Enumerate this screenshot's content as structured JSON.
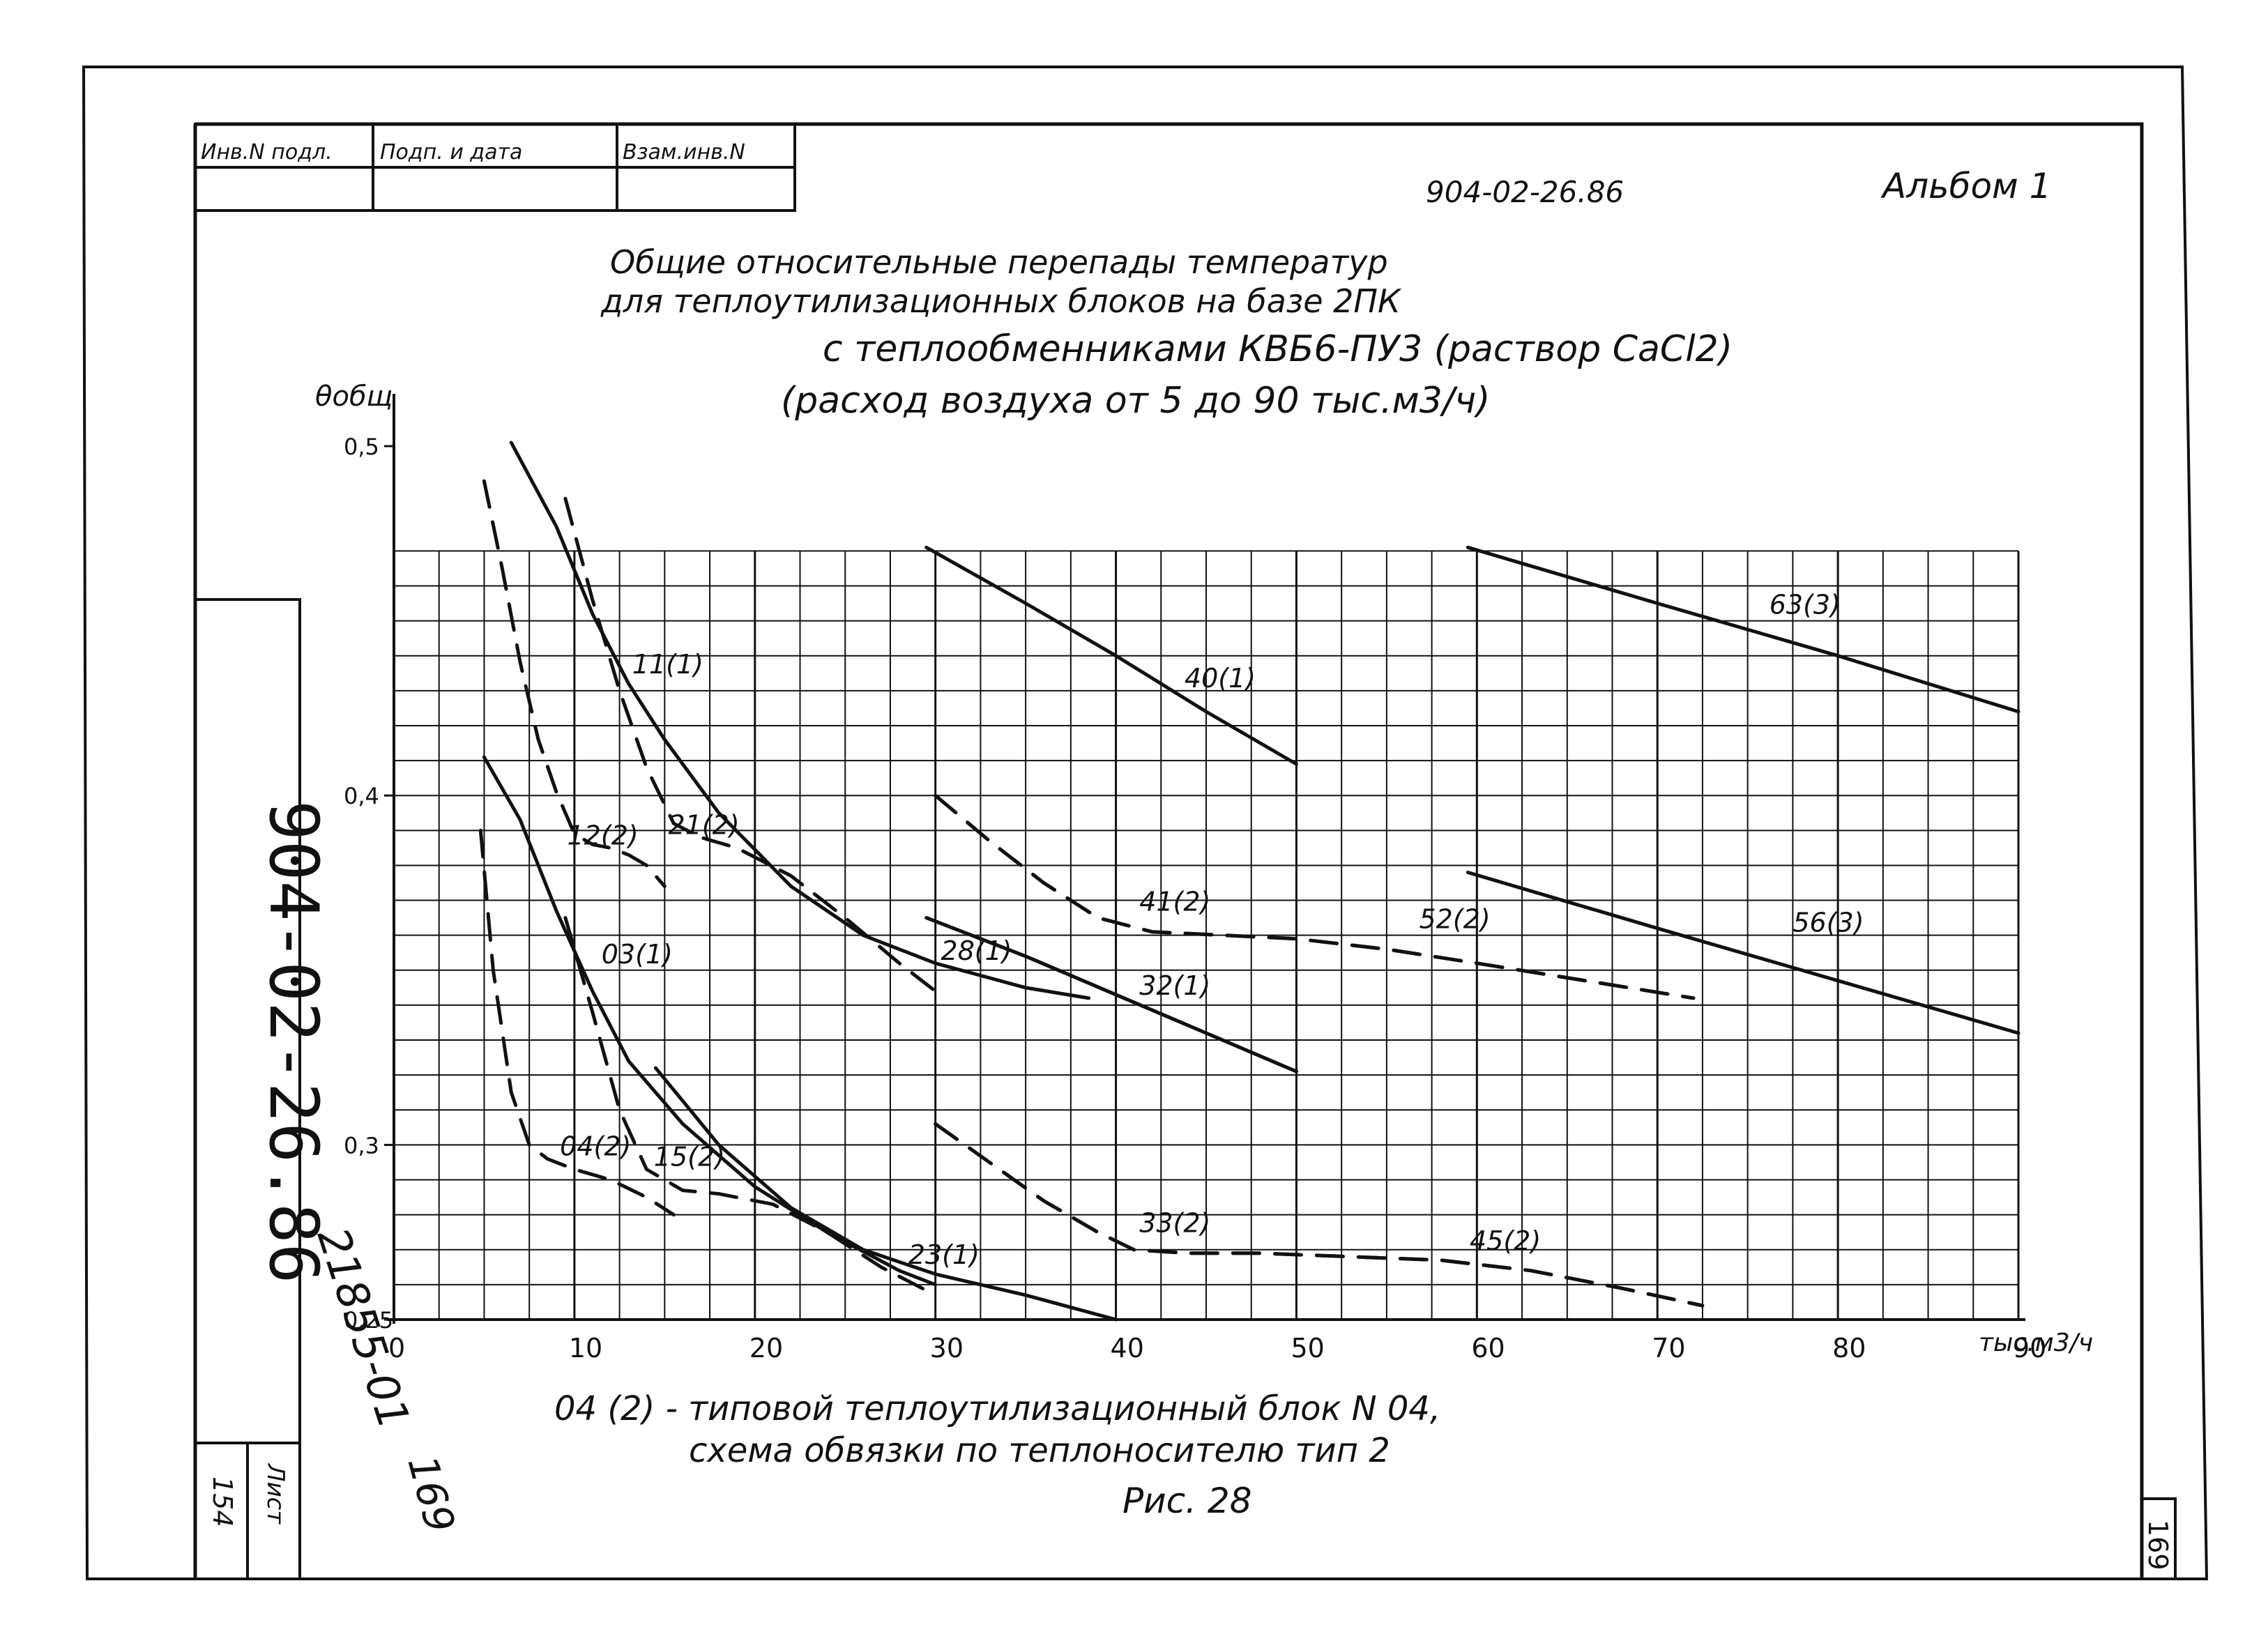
{
  "stamp": {
    "col1": "Инв.N подл.",
    "col2": "Подп. и дата",
    "col3": "Взам.инв.N"
  },
  "doc": {
    "code": "904-02-26.86",
    "album": "Альбом 1"
  },
  "title": {
    "line1": "Общие относительные перепады температур",
    "line2": "для теплоутилизационных блоков на базе 2ПК",
    "line3": "с теплообменниками КВБ6-ПУ3 (раствор CaCl2)",
    "line4": "(расход воздуха от 5 до 90 тыс.м3/ч)"
  },
  "side": {
    "vertical_code": "904-02-26.86",
    "inventory": "21855-01",
    "sheet_label": "Лист",
    "sheet_number": "154",
    "handwritten_number": "169"
  },
  "page_number": "169",
  "caption": {
    "line1": "04 (2) - типовой теплоутилизационный блок N 04,",
    "line2": "схема обвязки по теплоносителю тип 2",
    "line3": "Рис. 28"
  },
  "chart_data": {
    "type": "line",
    "ylabel": "θобщ",
    "xunit": "тыс.м3/ч",
    "xlim": [
      0,
      90
    ],
    "ylim": [
      0.25,
      0.5
    ],
    "grid_ylim": [
      0.25,
      0.47
    ],
    "xticks": [
      "0",
      "10",
      "20",
      "30",
      "40",
      "50",
      "60",
      "70",
      "80",
      "90"
    ],
    "yticks": [
      {
        "value": 0.5,
        "label": "0,5"
      },
      {
        "value": 0.4,
        "label": "0,4"
      },
      {
        "value": 0.3,
        "label": "0,3"
      },
      {
        "value": 0.25,
        "label": "0,25"
      }
    ],
    "grid": true,
    "series": [
      {
        "name": "11(1)",
        "style": "solid",
        "x": [
          6.5,
          9,
          11,
          13,
          15,
          18,
          22,
          26,
          30,
          35,
          38.5
        ],
        "y": [
          0.501,
          0.477,
          0.452,
          0.432,
          0.416,
          0.395,
          0.374,
          0.36,
          0.352,
          0.345,
          0.342
        ]
      },
      {
        "name": "12(2)",
        "style": "dashed",
        "x": [
          5,
          6,
          7,
          8,
          9,
          10,
          11,
          12,
          13,
          14,
          15
        ],
        "y": [
          0.49,
          0.465,
          0.438,
          0.416,
          0.401,
          0.389,
          0.386,
          0.385,
          0.383,
          0.38,
          0.374
        ]
      },
      {
        "name": "21(2)",
        "style": "dashed",
        "x": [
          9.5,
          11,
          12.5,
          14,
          15.5,
          17,
          19,
          22,
          25,
          28,
          30
        ],
        "y": [
          0.485,
          0.456,
          0.43,
          0.408,
          0.392,
          0.388,
          0.385,
          0.377,
          0.365,
          0.352,
          0.344
        ]
      },
      {
        "name": "03(1)",
        "style": "solid",
        "x": [
          5,
          7,
          9,
          11,
          13,
          16,
          20,
          24,
          28,
          30
        ],
        "y": [
          0.411,
          0.393,
          0.367,
          0.344,
          0.324,
          0.306,
          0.288,
          0.275,
          0.264,
          0.26
        ]
      },
      {
        "name": "04(2)",
        "style": "dashed",
        "x": [
          4.8,
          5.5,
          6.5,
          7.5,
          8.5,
          10,
          12,
          14,
          15.5
        ],
        "y": [
          0.39,
          0.35,
          0.315,
          0.3,
          0.296,
          0.293,
          0.29,
          0.285,
          0.28
        ]
      },
      {
        "name": "15(2)",
        "style": "dashed",
        "x": [
          9.5,
          11,
          12.5,
          14,
          16,
          18,
          21,
          24,
          27,
          30
        ],
        "y": [
          0.365,
          0.338,
          0.31,
          0.293,
          0.287,
          0.286,
          0.283,
          0.275,
          0.265,
          0.257
        ]
      },
      {
        "name": "23(1)",
        "style": "solid",
        "x": [
          14.5,
          18,
          22,
          26,
          30,
          35,
          40
        ],
        "y": [
          0.322,
          0.3,
          0.282,
          0.27,
          0.263,
          0.257,
          0.25
        ]
      },
      {
        "name": "28(1)",
        "style": "solid",
        "x": [
          29.5,
          35,
          40,
          45,
          50
        ],
        "y": [
          0.365,
          0.354,
          0.343,
          0.332,
          0.321
        ]
      },
      {
        "name": "32(1)",
        "style": "solid",
        "x": [
          29.5,
          35,
          40,
          45,
          50
        ],
        "y": [
          0.365,
          0.354,
          0.343,
          0.332,
          0.321
        ]
      },
      {
        "name": "40(1)",
        "style": "solid",
        "x": [
          29.5,
          35,
          40,
          45,
          50
        ],
        "y": [
          0.471,
          0.455,
          0.44,
          0.424,
          0.409
        ]
      },
      {
        "name": "41(2)",
        "style": "dashed",
        "x": [
          30,
          33,
          36,
          39,
          42,
          46,
          50,
          55,
          60,
          66,
          72
        ],
        "y": [
          0.4,
          0.387,
          0.375,
          0.365,
          0.361,
          0.36,
          0.359,
          0.356,
          0.352,
          0.347,
          0.342
        ]
      },
      {
        "name": "52(2)",
        "style": "dashed",
        "x": [
          30,
          33,
          36,
          39,
          42,
          46,
          50,
          55,
          60,
          66,
          72
        ],
        "y": [
          0.4,
          0.387,
          0.375,
          0.365,
          0.361,
          0.36,
          0.359,
          0.356,
          0.352,
          0.347,
          0.342
        ]
      },
      {
        "name": "33(2)",
        "style": "dashed",
        "x": [
          30,
          33,
          36,
          39,
          41,
          44,
          48,
          53,
          58,
          63,
          68,
          72.5
        ],
        "y": [
          0.306,
          0.295,
          0.284,
          0.275,
          0.27,
          0.269,
          0.269,
          0.268,
          0.267,
          0.264,
          0.259,
          0.254
        ]
      },
      {
        "name": "45(2)",
        "style": "dashed",
        "x": [
          30,
          33,
          36,
          39,
          41,
          44,
          48,
          53,
          58,
          63,
          68,
          72.5
        ],
        "y": [
          0.306,
          0.295,
          0.284,
          0.275,
          0.27,
          0.269,
          0.269,
          0.268,
          0.267,
          0.264,
          0.259,
          0.254
        ]
      },
      {
        "name": "56(3)",
        "style": "solid",
        "x": [
          59.5,
          70,
          80,
          90
        ],
        "y": [
          0.378,
          0.362,
          0.347,
          0.332
        ]
      },
      {
        "name": "63(3)",
        "style": "solid",
        "x": [
          59.5,
          70,
          80,
          90
        ],
        "y": [
          0.471,
          0.455,
          0.44,
          0.424
        ]
      }
    ],
    "labels": [
      {
        "text": "11(1)",
        "x": 13.2,
        "y": 0.435
      },
      {
        "text": "12(2)",
        "x": 9.6,
        "y": 0.386
      },
      {
        "text": "21(2)",
        "x": 15.2,
        "y": 0.389
      },
      {
        "text": "03(1)",
        "x": 11.5,
        "y": 0.352
      },
      {
        "text": "04(2)",
        "x": 9.2,
        "y": 0.297
      },
      {
        "text": "15(2)",
        "x": 14.4,
        "y": 0.294
      },
      {
        "text": "23(1)",
        "x": 28.5,
        "y": 0.266
      },
      {
        "text": "28(1)",
        "x": 30.3,
        "y": 0.353
      },
      {
        "text": "32(1)",
        "x": 41.3,
        "y": 0.343
      },
      {
        "text": "40(1)",
        "x": 43.8,
        "y": 0.431
      },
      {
        "text": "41(2)",
        "x": 41.3,
        "y": 0.367
      },
      {
        "text": "52(2)",
        "x": 56.8,
        "y": 0.362
      },
      {
        "text": "33(2)",
        "x": 41.3,
        "y": 0.275
      },
      {
        "text": "45(2)",
        "x": 59.6,
        "y": 0.27
      },
      {
        "text": "56(3)",
        "x": 77.5,
        "y": 0.361
      },
      {
        "text": "63(3)",
        "x": 76.2,
        "y": 0.452
      }
    ]
  }
}
